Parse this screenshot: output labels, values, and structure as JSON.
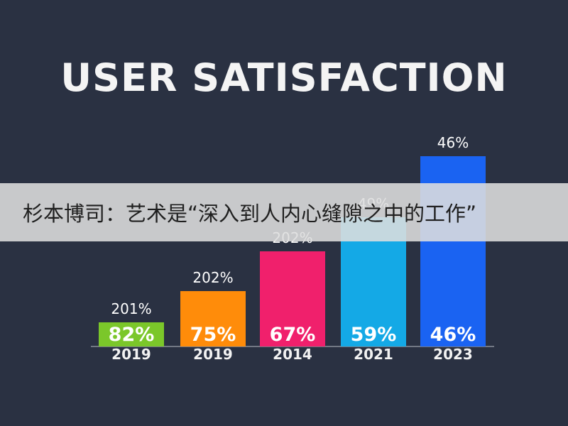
{
  "title": "USER SATISFACTION",
  "banner": {
    "text": "杉本博司：艺术是“深入到人内心缝隙之中的工作”"
  },
  "colors": {
    "background": "#2a3142",
    "axis": "#8a8f99"
  },
  "chart_data": {
    "type": "bar",
    "title": "USER SATISFACTION",
    "categories": [
      "2019",
      "2019",
      "2014",
      "2021",
      "2023"
    ],
    "values": [
      82,
      75,
      67,
      59,
      46
    ],
    "value_labels": [
      "82%",
      "75%",
      "67%",
      "59%",
      "46%"
    ],
    "top_labels": [
      "201%",
      "202%",
      "202%",
      "49%",
      "46%"
    ],
    "bar_heights": [
      34,
      78,
      134,
      182,
      268
    ],
    "bar_colors": [
      "#7bc72a",
      "#ff8c0a",
      "#f0206c",
      "#14a9e6",
      "#1a63f2"
    ],
    "xlabel": "",
    "ylabel": "",
    "grid": false
  }
}
